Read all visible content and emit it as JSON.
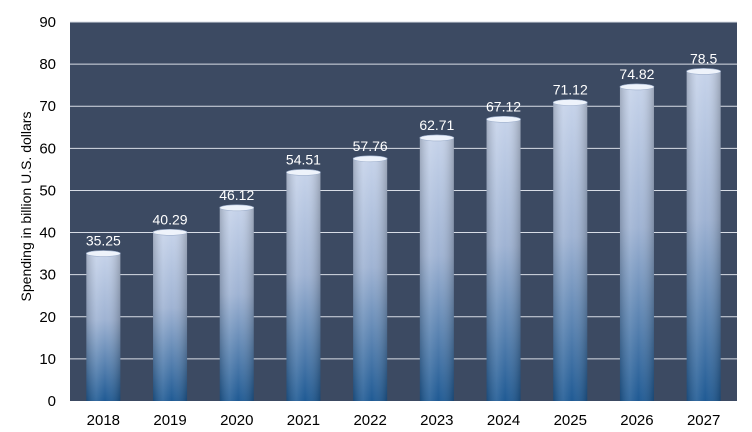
{
  "chart_data": {
    "type": "bar",
    "categories": [
      "2018",
      "2019",
      "2020",
      "2021",
      "2022",
      "2023",
      "2024",
      "2025",
      "2026",
      "2027"
    ],
    "values": [
      35.25,
      40.29,
      46.12,
      54.51,
      57.76,
      62.71,
      67.12,
      71.12,
      74.82,
      78.5
    ],
    "data_labels": [
      "35.25",
      "40.29",
      "46.12",
      "54.51",
      "57.76",
      "62.71",
      "67.12",
      "71.12",
      "74.82",
      "78.5"
    ],
    "xlabel": "",
    "ylabel": "Spending in billion U.S. dollars",
    "ylim": [
      0,
      90
    ],
    "yticks": [
      "0",
      "10",
      "20",
      "30",
      "40",
      "50",
      "60",
      "70",
      "80",
      "90"
    ],
    "grid": true,
    "legend": "none",
    "colors": {
      "plot_background": "#3c4a62",
      "gridline": "#d8dde6",
      "bar_top": "#c6d3ea",
      "bar_mid": "#9fb3d3",
      "bar_bottom": "#1f5a94",
      "data_label": "#ffffff"
    }
  }
}
